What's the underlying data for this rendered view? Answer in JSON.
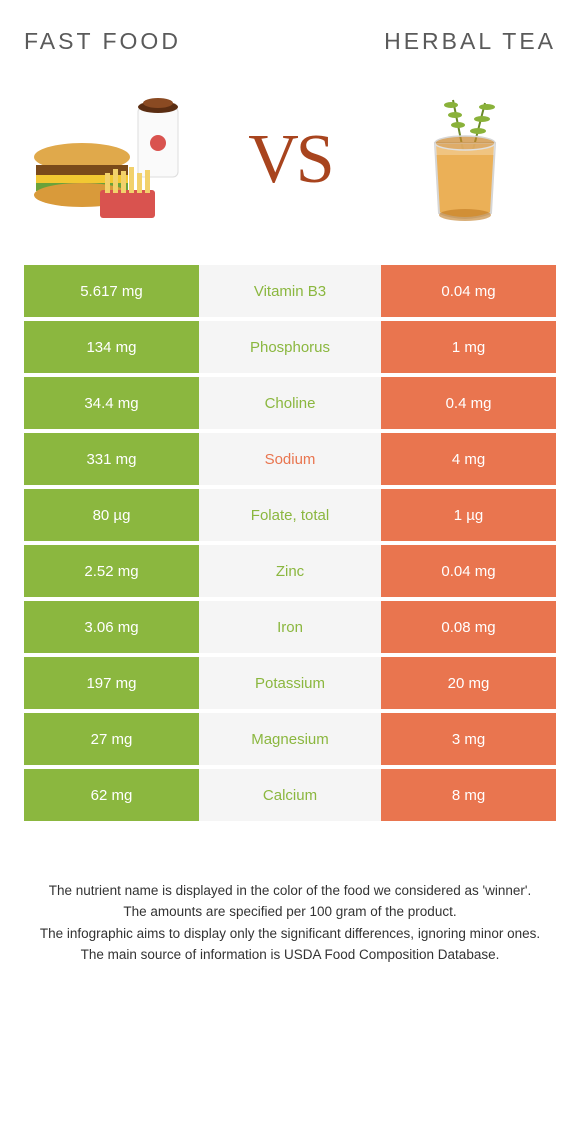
{
  "titles": {
    "left": "FAST FOOD",
    "right": "HERBAL TEA"
  },
  "vs_label": "VS",
  "colors": {
    "left": "#8bb73f",
    "right": "#e9754f",
    "mid_bg": "#f5f5f5",
    "text": "#333333",
    "vs": "#a8441e"
  },
  "rows": [
    {
      "left": "5.617 mg",
      "label": "Vitamin B3",
      "winner": "left",
      "right": "0.04 mg"
    },
    {
      "left": "134 mg",
      "label": "Phosphorus",
      "winner": "left",
      "right": "1 mg"
    },
    {
      "left": "34.4 mg",
      "label": "Choline",
      "winner": "left",
      "right": "0.4 mg"
    },
    {
      "left": "331 mg",
      "label": "Sodium",
      "winner": "right",
      "right": "4 mg"
    },
    {
      "left": "80 µg",
      "label": "Folate, total",
      "winner": "left",
      "right": "1 µg"
    },
    {
      "left": "2.52 mg",
      "label": "Zinc",
      "winner": "left",
      "right": "0.04 mg"
    },
    {
      "left": "3.06 mg",
      "label": "Iron",
      "winner": "left",
      "right": "0.08 mg"
    },
    {
      "left": "197 mg",
      "label": "Potassium",
      "winner": "left",
      "right": "20 mg"
    },
    {
      "left": "27 mg",
      "label": "Magnesium",
      "winner": "left",
      "right": "3 mg"
    },
    {
      "left": "62 mg",
      "label": "Calcium",
      "winner": "left",
      "right": "8 mg"
    }
  ],
  "footer": [
    "The nutrient name is displayed in the color of the food we considered as 'winner'.",
    "The amounts are specified per 100 gram of the product.",
    "The infographic aims to display only the significant differences, ignoring minor ones.",
    "The main source of information is USDA Food Composition Database."
  ]
}
